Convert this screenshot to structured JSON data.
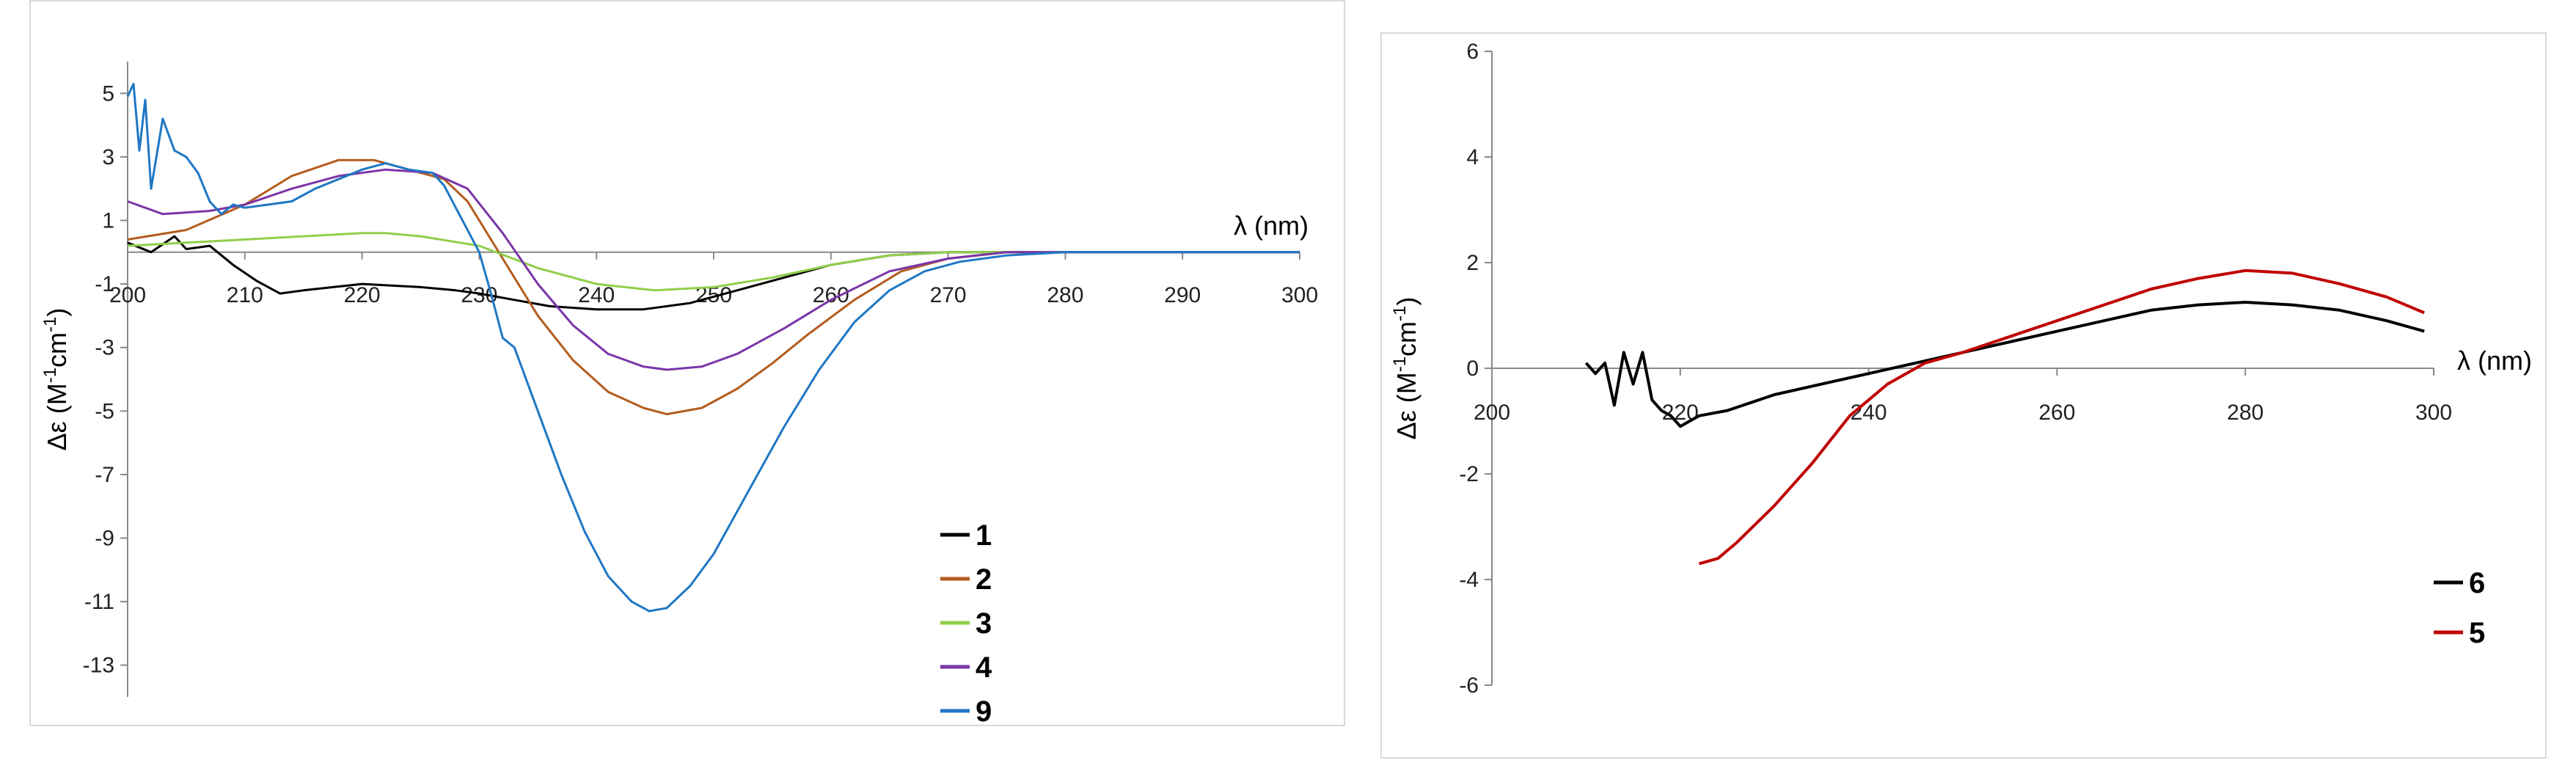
{
  "chart_data": [
    {
      "type": "line",
      "xlabel": "λ (nm)",
      "ylabel": "Δε (M-1cm-1)",
      "ylabel_parts": [
        "Δε (M",
        "-1",
        "cm",
        "-1",
        ")"
      ],
      "xlim": [
        200,
        300
      ],
      "ylim": [
        -14,
        6
      ],
      "x_ticks": [
        200,
        210,
        220,
        230,
        240,
        250,
        260,
        270,
        280,
        290,
        300
      ],
      "y_ticks": [
        5,
        3,
        1,
        -1,
        -3,
        -5,
        -7,
        -9,
        -11,
        -13
      ],
      "grid": false,
      "legend_position": "bottom-right",
      "series": [
        {
          "name": "1",
          "color": "#000000",
          "x": [
            200,
            202,
            204,
            205,
            207,
            209,
            211,
            213,
            215,
            220,
            225,
            228,
            230,
            233,
            236,
            240,
            244,
            248,
            252,
            256,
            260,
            265,
            270,
            275,
            280,
            290,
            300
          ],
          "y": [
            0.3,
            0.0,
            0.5,
            0.1,
            0.2,
            -0.4,
            -0.9,
            -1.3,
            -1.2,
            -1.0,
            -1.1,
            -1.2,
            -1.3,
            -1.5,
            -1.7,
            -1.8,
            -1.8,
            -1.6,
            -1.2,
            -0.8,
            -0.4,
            -0.1,
            0.0,
            0.0,
            0.0,
            0.0,
            0.0
          ]
        },
        {
          "name": "2",
          "color": "#b35c1e",
          "x": [
            200,
            205,
            210,
            214,
            218,
            221,
            224,
            227,
            229,
            232,
            235,
            238,
            241,
            244,
            246,
            249,
            252,
            255,
            258,
            262,
            266,
            270,
            275,
            280,
            290,
            300
          ],
          "y": [
            0.4,
            0.7,
            1.5,
            2.4,
            2.9,
            2.9,
            2.6,
            2.3,
            1.6,
            -0.2,
            -2.0,
            -3.4,
            -4.4,
            -4.9,
            -5.1,
            -4.9,
            -4.3,
            -3.5,
            -2.6,
            -1.5,
            -0.6,
            -0.2,
            0.0,
            0.0,
            0.0,
            0.0
          ]
        },
        {
          "name": "3",
          "color": "#8fcf4a",
          "x": [
            200,
            205,
            210,
            215,
            220,
            222,
            225,
            230,
            235,
            240,
            245,
            250,
            255,
            260,
            265,
            270,
            275,
            280,
            290,
            300
          ],
          "y": [
            0.2,
            0.3,
            0.4,
            0.5,
            0.6,
            0.6,
            0.5,
            0.2,
            -0.5,
            -1.0,
            -1.2,
            -1.1,
            -0.8,
            -0.4,
            -0.1,
            0.0,
            0.0,
            0.0,
            0.0,
            0.0
          ]
        },
        {
          "name": "4",
          "color": "#7b35a8",
          "x": [
            200,
            203,
            207,
            210,
            214,
            218,
            222,
            226,
            229,
            232,
            235,
            238,
            241,
            244,
            246,
            249,
            252,
            256,
            260,
            265,
            270,
            275,
            280,
            290,
            300
          ],
          "y": [
            1.6,
            1.2,
            1.3,
            1.5,
            2.0,
            2.4,
            2.6,
            2.5,
            2.0,
            0.6,
            -1.0,
            -2.3,
            -3.2,
            -3.6,
            -3.7,
            -3.6,
            -3.2,
            -2.4,
            -1.5,
            -0.6,
            -0.2,
            0.0,
            0.0,
            0.0,
            0.0
          ]
        },
        {
          "name": "9",
          "color": "#1f77c4",
          "x": [
            200,
            200.5,
            201,
            201.5,
            202,
            203,
            204,
            205,
            206,
            207,
            208,
            209,
            210,
            212,
            214,
            216,
            218,
            220,
            222,
            224,
            226,
            227,
            228,
            230,
            231,
            232,
            233,
            235,
            237,
            239,
            241,
            243,
            244.5,
            246,
            248,
            250,
            253,
            256,
            259,
            262,
            265,
            268,
            271,
            275,
            280,
            290,
            300
          ],
          "y": [
            4.9,
            5.3,
            3.2,
            4.8,
            2.0,
            4.2,
            3.2,
            3.0,
            2.5,
            1.6,
            1.2,
            1.5,
            1.4,
            1.5,
            1.6,
            2.0,
            2.3,
            2.6,
            2.8,
            2.6,
            2.5,
            2.1,
            1.4,
            0.0,
            -1.3,
            -2.7,
            -3.0,
            -5.0,
            -7.0,
            -8.8,
            -10.2,
            -11.0,
            -11.3,
            -11.2,
            -10.5,
            -9.5,
            -7.5,
            -5.5,
            -3.7,
            -2.2,
            -1.2,
            -0.6,
            -0.3,
            -0.1,
            0.0,
            0.0,
            0.0
          ]
        }
      ]
    },
    {
      "type": "line",
      "xlabel": "λ (nm)",
      "ylabel": "Δε (M-1cm-1)",
      "ylabel_parts": [
        "Δε (M",
        "-1",
        "cm",
        "-1",
        ")"
      ],
      "xlim": [
        200,
        300
      ],
      "ylim": [
        -6,
        6
      ],
      "x_ticks": [
        200,
        220,
        240,
        260,
        280,
        300
      ],
      "y_ticks": [
        6,
        4,
        2,
        0,
        -2,
        -4,
        -6
      ],
      "grid": false,
      "legend_position": "bottom-right",
      "series": [
        {
          "name": "6",
          "color": "#000000",
          "x": [
            210,
            211,
            212,
            213,
            214,
            215,
            216,
            217,
            218,
            219,
            220,
            222,
            225,
            230,
            235,
            240,
            245,
            250,
            255,
            260,
            265,
            270,
            275,
            280,
            285,
            290,
            295,
            299
          ],
          "y": [
            0.1,
            -0.1,
            0.1,
            -0.7,
            0.3,
            -0.3,
            0.3,
            -0.6,
            -0.8,
            -0.9,
            -1.1,
            -0.9,
            -0.8,
            -0.5,
            -0.3,
            -0.1,
            0.1,
            0.3,
            0.5,
            0.7,
            0.9,
            1.1,
            1.2,
            1.25,
            1.2,
            1.1,
            0.9,
            0.7
          ]
        },
        {
          "name": "5",
          "color": "#c00000",
          "x": [
            222,
            224,
            226,
            230,
            234,
            238,
            242,
            246,
            250,
            255,
            260,
            265,
            270,
            275,
            280,
            285,
            290,
            295,
            299
          ],
          "y": [
            -3.7,
            -3.6,
            -3.3,
            -2.6,
            -1.8,
            -0.9,
            -0.3,
            0.1,
            0.3,
            0.6,
            0.9,
            1.2,
            1.5,
            1.7,
            1.85,
            1.8,
            1.6,
            1.35,
            1.05
          ]
        }
      ]
    }
  ]
}
